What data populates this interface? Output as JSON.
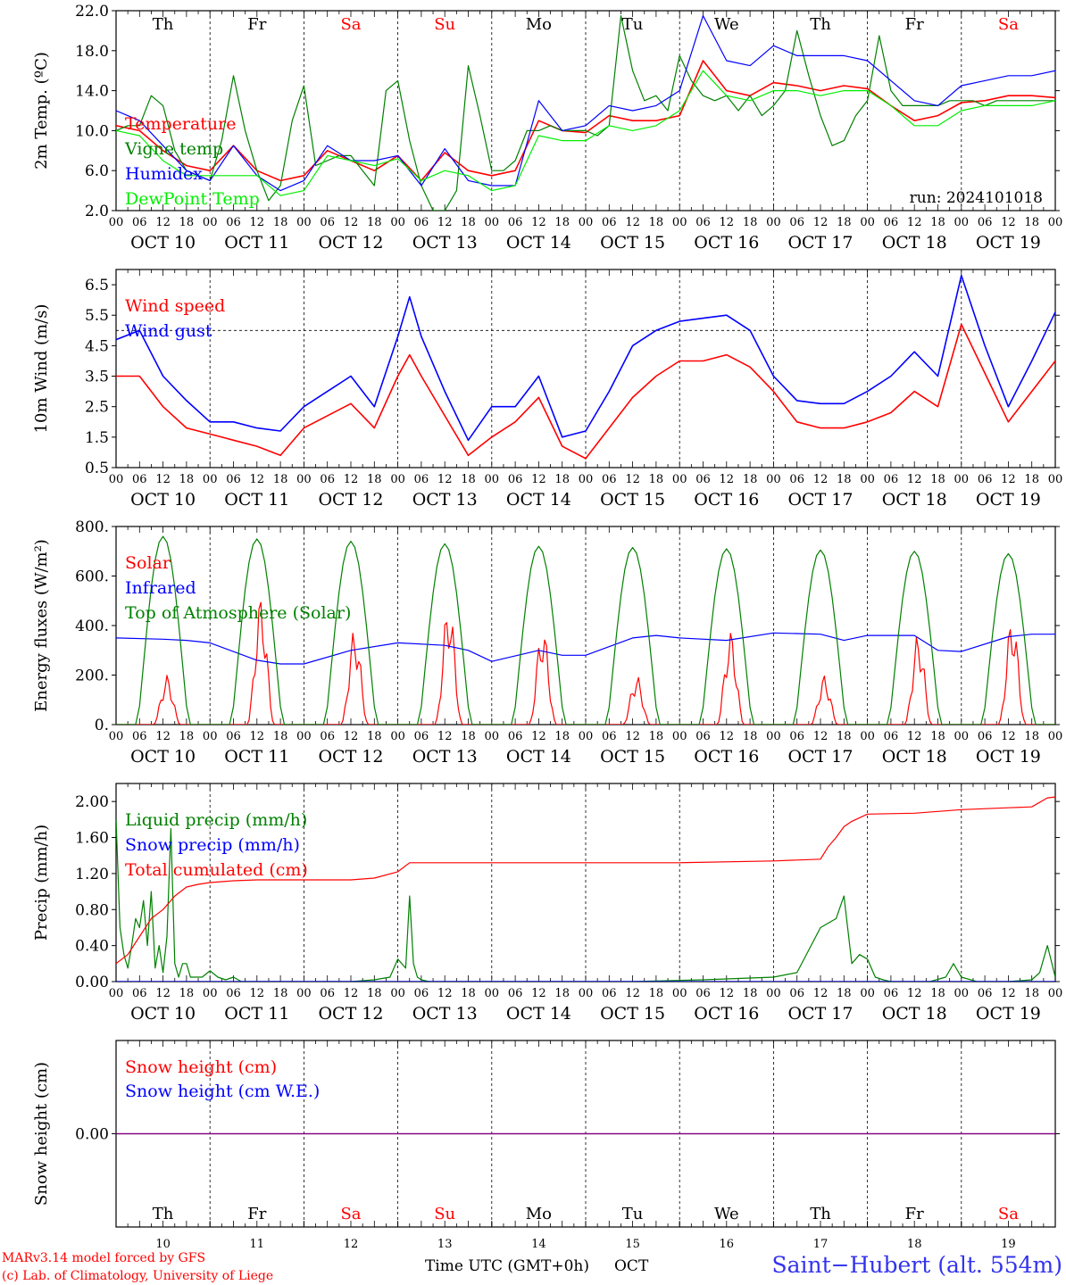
{
  "meteogram": {
    "run_label": "run: 2024101018",
    "footer": {
      "model_line1": "MARv3.14 model forced by GFS",
      "model_line2": "(c) Lab. of Climatology, University of Liege",
      "time_axis_label": "Time UTC (GMT+0h)",
      "month_label": "OCT",
      "station": "Saint−Hubert (alt. 554m)"
    },
    "days": [
      {
        "weekday": "Th",
        "date": "OCT 10",
        "day_num": "10",
        "weekend": false
      },
      {
        "weekday": "Fr",
        "date": "OCT 11",
        "day_num": "11",
        "weekend": false
      },
      {
        "weekday": "Sa",
        "date": "OCT 12",
        "day_num": "12",
        "weekend": true
      },
      {
        "weekday": "Su",
        "date": "OCT 13",
        "day_num": "13",
        "weekend": true
      },
      {
        "weekday": "Mo",
        "date": "OCT 14",
        "day_num": "14",
        "weekend": false
      },
      {
        "weekday": "Tu",
        "date": "OCT 15",
        "day_num": "15",
        "weekend": false
      },
      {
        "weekday": "We",
        "date": "OCT 16",
        "day_num": "16",
        "weekend": false
      },
      {
        "weekday": "Th",
        "date": "OCT 17",
        "day_num": "17",
        "weekend": false
      },
      {
        "weekday": "Fr",
        "date": "OCT 18",
        "day_num": "18",
        "weekend": false
      },
      {
        "weekday": "Sa",
        "date": "OCT 19",
        "day_num": "19",
        "weekend": true
      }
    ],
    "hour_ticks": [
      "00",
      "06",
      "12",
      "18"
    ],
    "end_tick": "00",
    "colors": {
      "red": "#ff0000",
      "green": "#008000",
      "blue": "#0000ff",
      "lightgreen": "#00ee00",
      "purple": "#800080"
    }
  },
  "chart_data": [
    {
      "type": "line",
      "ylabel": "2m Temp. (ºC)",
      "ylim": [
        2,
        22
      ],
      "yticks": [
        2,
        6,
        10,
        14,
        18,
        22
      ],
      "ytick_labels": [
        "2.0",
        "6.0",
        "10.0",
        "14.0",
        "18.0",
        "22.0"
      ],
      "x_unit": "hours since Oct 10 00 UTC",
      "legend_position": "left",
      "series": [
        {
          "name": "Temperature",
          "color": "#ff0000",
          "x": [
            0,
            6,
            12,
            18,
            24,
            30,
            36,
            42,
            48,
            54,
            60,
            66,
            72,
            78,
            84,
            90,
            96,
            102,
            108,
            114,
            120,
            126,
            132,
            138,
            144,
            150,
            156,
            162,
            168,
            174,
            180,
            186,
            192,
            198,
            204,
            210,
            216,
            222,
            228,
            234,
            240
          ],
          "y": [
            10.5,
            10,
            8,
            6.5,
            6,
            8.5,
            6,
            5,
            5.5,
            8,
            7,
            6,
            7.5,
            5,
            7.8,
            6,
            5.5,
            6,
            11,
            10,
            9.8,
            11.5,
            11,
            11,
            11.5,
            17,
            14,
            13.5,
            14.8,
            14.5,
            14,
            14.5,
            14.2,
            12.5,
            11,
            11.5,
            12.8,
            13,
            13.5,
            13.5,
            13.3
          ]
        },
        {
          "name": "Vigne temp",
          "color": "#008000",
          "x": [
            0,
            3,
            6,
            9,
            12,
            15,
            18,
            21,
            24,
            27,
            30,
            33,
            36,
            39,
            42,
            45,
            48,
            51,
            54,
            57,
            60,
            63,
            66,
            69,
            72,
            75,
            78,
            81,
            84,
            87,
            90,
            93,
            96,
            99,
            102,
            105,
            108,
            111,
            114,
            117,
            120,
            123,
            126,
            129,
            132,
            135,
            138,
            141,
            144,
            147,
            150,
            153,
            156,
            159,
            162,
            165,
            168,
            171,
            174,
            177,
            180,
            183,
            186,
            189,
            192,
            195,
            198,
            201,
            204,
            207,
            210,
            213,
            216,
            219,
            222,
            225,
            228,
            231,
            234,
            237,
            240
          ],
          "y": [
            10,
            10.5,
            10.5,
            13.5,
            12.5,
            8,
            6,
            5.5,
            5,
            9,
            15.5,
            10,
            6,
            3,
            4.5,
            11,
            14.5,
            6.5,
            7,
            7.5,
            7.5,
            6,
            4.5,
            14,
            15,
            9,
            4.5,
            2,
            2,
            4,
            16.5,
            11.5,
            6,
            6,
            7,
            10,
            10,
            10.5,
            10,
            10,
            10,
            9.5,
            10.5,
            21.5,
            16,
            13,
            13.5,
            12,
            17.5,
            15,
            13.5,
            13,
            13.5,
            12,
            13.5,
            11.5,
            12.5,
            14,
            20,
            15.5,
            11.5,
            8.5,
            9,
            11.5,
            13,
            19.5,
            14,
            12.5,
            12.5,
            12.5,
            12.5,
            13,
            13,
            13,
            12.5,
            13,
            13,
            13,
            13,
            13,
            13
          ]
        },
        {
          "name": "Humidex",
          "color": "#0000ff",
          "x": [
            0,
            6,
            12,
            18,
            24,
            30,
            36,
            42,
            48,
            54,
            60,
            66,
            72,
            78,
            84,
            90,
            96,
            102,
            108,
            114,
            120,
            126,
            132,
            138,
            144,
            150,
            156,
            162,
            168,
            174,
            180,
            186,
            192,
            198,
            204,
            210,
            216,
            222,
            228,
            234,
            240
          ],
          "y": [
            12,
            11,
            8.5,
            6,
            5,
            8.5,
            5.5,
            4,
            5,
            8.5,
            7,
            7,
            7.5,
            4.5,
            8.2,
            5,
            4.5,
            4.5,
            13,
            10,
            10.5,
            12.5,
            12,
            12.5,
            14,
            21.5,
            17,
            16.5,
            18.5,
            17.5,
            17.5,
            17.5,
            17,
            15,
            13,
            12.5,
            14.5,
            15,
            15.5,
            15.5,
            16
          ]
        },
        {
          "name": "DewPoint Temp",
          "color": "#00ee00",
          "x": [
            0,
            6,
            12,
            18,
            24,
            30,
            36,
            42,
            48,
            54,
            60,
            66,
            72,
            78,
            84,
            90,
            96,
            102,
            108,
            114,
            120,
            126,
            132,
            138,
            144,
            150,
            156,
            162,
            168,
            174,
            180,
            186,
            192,
            198,
            204,
            210,
            216,
            222,
            228,
            234,
            240
          ],
          "y": [
            10,
            9.5,
            7,
            5.5,
            5.5,
            5.5,
            5.5,
            3.5,
            4,
            7.5,
            7,
            6.5,
            7.2,
            5,
            6,
            5.5,
            4,
            4.5,
            9.5,
            9,
            9,
            10.5,
            10,
            10.5,
            12,
            16,
            13.5,
            13,
            14,
            14,
            13.5,
            14,
            14,
            12.5,
            10.5,
            10.5,
            12,
            12.5,
            12.5,
            12.5,
            13
          ]
        }
      ]
    },
    {
      "type": "line",
      "ylabel": "10m Wind (m/s)",
      "ylim": [
        0.5,
        7
      ],
      "yticks": [
        0.5,
        1.5,
        2.5,
        3.5,
        4.5,
        5.5,
        6.5
      ],
      "ytick_labels": [
        "0.5",
        "1.5",
        "2.5",
        "3.5",
        "4.5",
        "5.5",
        "6.5"
      ],
      "reference_line": 5,
      "series": [
        {
          "name": "Wind speed",
          "color": "#ff0000",
          "x": [
            0,
            6,
            12,
            18,
            24,
            30,
            36,
            42,
            48,
            54,
            60,
            66,
            72,
            75,
            78,
            84,
            90,
            96,
            102,
            108,
            114,
            120,
            126,
            132,
            138,
            144,
            150,
            156,
            162,
            168,
            174,
            180,
            186,
            192,
            198,
            204,
            210,
            216,
            222,
            228,
            234,
            240
          ],
          "y": [
            3.5,
            3.5,
            2.5,
            1.8,
            1.6,
            1.4,
            1.2,
            0.9,
            1.8,
            2.2,
            2.6,
            1.8,
            3.5,
            4.2,
            3.5,
            2.2,
            0.9,
            1.5,
            2,
            2.8,
            1.2,
            0.8,
            1.8,
            2.8,
            3.5,
            4,
            4,
            4.2,
            3.8,
            3,
            2,
            1.8,
            1.8,
            2,
            2.3,
            3,
            2.5,
            5.2,
            3.6,
            2,
            3,
            4
          ]
        },
        {
          "name": "Wind gust",
          "color": "#0000ff",
          "x": [
            0,
            6,
            12,
            18,
            24,
            30,
            36,
            42,
            48,
            54,
            60,
            66,
            72,
            75,
            78,
            84,
            90,
            96,
            102,
            108,
            114,
            120,
            126,
            132,
            138,
            144,
            150,
            156,
            162,
            168,
            174,
            180,
            186,
            192,
            198,
            204,
            210,
            216,
            222,
            228,
            234,
            240
          ],
          "y": [
            4.7,
            5,
            3.5,
            2.7,
            2,
            2,
            1.8,
            1.7,
            2.5,
            3,
            3.5,
            2.5,
            4.8,
            6.1,
            4.8,
            3,
            1.4,
            2.5,
            2.5,
            3.5,
            1.5,
            1.7,
            3,
            4.5,
            5,
            5.3,
            5.4,
            5.5,
            5,
            3.5,
            2.7,
            2.6,
            2.6,
            3,
            3.5,
            4.3,
            3.5,
            6.8,
            4.5,
            2.5,
            4,
            5.6
          ]
        }
      ]
    },
    {
      "type": "line",
      "ylabel": "Energy fluxes (W/m²)",
      "ylim": [
        0,
        800
      ],
      "yticks": [
        0,
        200,
        400,
        600,
        800
      ],
      "ytick_labels": [
        "0.",
        "200.",
        "400.",
        "600.",
        "800."
      ],
      "series": [
        {
          "name": "Solar",
          "peaks": [
            200,
            520,
            390,
            500,
            400,
            200,
            380,
            200,
            370,
            440
          ]
        },
        {
          "name": "Infrared",
          "color": "#0000ff",
          "x": [
            0,
            12,
            18,
            24,
            36,
            42,
            48,
            60,
            72,
            84,
            90,
            96,
            108,
            114,
            120,
            132,
            138,
            144,
            156,
            168,
            180,
            186,
            192,
            204,
            210,
            216,
            228,
            234,
            240
          ],
          "y": [
            350,
            345,
            340,
            330,
            260,
            245,
            245,
            300,
            330,
            320,
            300,
            255,
            300,
            280,
            280,
            350,
            360,
            350,
            340,
            370,
            365,
            340,
            360,
            360,
            300,
            295,
            355,
            365,
            365
          ]
        },
        {
          "name": "Top of Atmosphere (Solar)",
          "peaks": [
            760,
            750,
            740,
            730,
            720,
            715,
            710,
            705,
            700,
            690
          ]
        }
      ]
    },
    {
      "type": "line",
      "ylabel": "Precip (mm/h)",
      "ylim": [
        0,
        2.2
      ],
      "yticks": [
        0,
        0.4,
        0.8,
        1.2,
        1.6,
        2.0
      ],
      "ytick_labels": [
        "0.00",
        "0.40",
        "0.80",
        "1.20",
        "1.60",
        "2.00"
      ],
      "series": [
        {
          "name": "Liquid precip (mm/h)",
          "color": "#008000",
          "x": [
            0,
            1,
            2,
            3,
            4,
            5,
            6,
            7,
            8,
            9,
            10,
            11,
            12,
            13,
            14,
            15,
            16,
            17,
            18,
            19,
            20,
            21,
            22,
            24,
            26,
            28,
            30,
            32,
            36,
            42,
            48,
            60,
            66,
            70,
            72,
            74,
            75,
            76,
            77,
            78,
            80,
            84,
            96,
            132,
            150,
            168,
            174,
            180,
            184,
            186,
            188,
            190,
            192,
            194,
            196,
            198,
            200,
            204,
            208,
            212,
            214,
            216,
            220,
            228,
            234,
            236,
            238,
            240
          ],
          "y": [
            1.8,
            0.6,
            0.3,
            0.15,
            0.4,
            0.7,
            0.6,
            0.9,
            0.4,
            1,
            0.15,
            0.4,
            0.1,
            0.5,
            1.7,
            0.2,
            0.05,
            0.2,
            0.2,
            0.05,
            0.05,
            0.05,
            0.05,
            0.12,
            0.05,
            0.02,
            0.05,
            0,
            0,
            0,
            0,
            0,
            0.02,
            0.05,
            0.25,
            0.15,
            0.95,
            0.2,
            0.05,
            0.02,
            0,
            0,
            0,
            0,
            0.02,
            0.05,
            0.1,
            0.6,
            0.7,
            0.95,
            0.2,
            0.3,
            0.25,
            0.05,
            0.02,
            0,
            0,
            0,
            0,
            0.05,
            0.2,
            0.05,
            0,
            0,
            0.02,
            0.1,
            0.4,
            0.05
          ]
        },
        {
          "name": "Snow precip (mm/h)",
          "color": "#0000ff",
          "x": [
            0,
            240
          ],
          "y": [
            0,
            0
          ]
        },
        {
          "name": "Total cumulated (cm)",
          "color": "#ff0000",
          "x": [
            0,
            3,
            6,
            9,
            12,
            15,
            18,
            21,
            24,
            30,
            36,
            48,
            60,
            66,
            72,
            75,
            78,
            96,
            120,
            144,
            168,
            180,
            182,
            184,
            186,
            188,
            192,
            204,
            216,
            228,
            234,
            238,
            240
          ],
          "y": [
            0.2,
            0.3,
            0.5,
            0.7,
            0.8,
            0.95,
            1.05,
            1.08,
            1.1,
            1.12,
            1.13,
            1.13,
            1.13,
            1.15,
            1.22,
            1.32,
            1.32,
            1.32,
            1.32,
            1.32,
            1.34,
            1.36,
            1.5,
            1.6,
            1.72,
            1.78,
            1.86,
            1.87,
            1.91,
            1.93,
            1.94,
            2.04,
            2.05
          ]
        }
      ]
    },
    {
      "type": "line",
      "ylabel": "Snow height (cm)",
      "ylim": [
        -1,
        1
      ],
      "yticks": [
        0
      ],
      "ytick_labels": [
        "0.00"
      ],
      "series": [
        {
          "name": "Snow height (cm)",
          "color": "#ff0000",
          "x": [
            0,
            240
          ],
          "y": [
            0,
            0
          ]
        },
        {
          "name": "Snow height (cm W.E.)",
          "color": "#0000ff",
          "x": [
            0,
            240
          ],
          "y": [
            0,
            0
          ]
        }
      ]
    }
  ]
}
